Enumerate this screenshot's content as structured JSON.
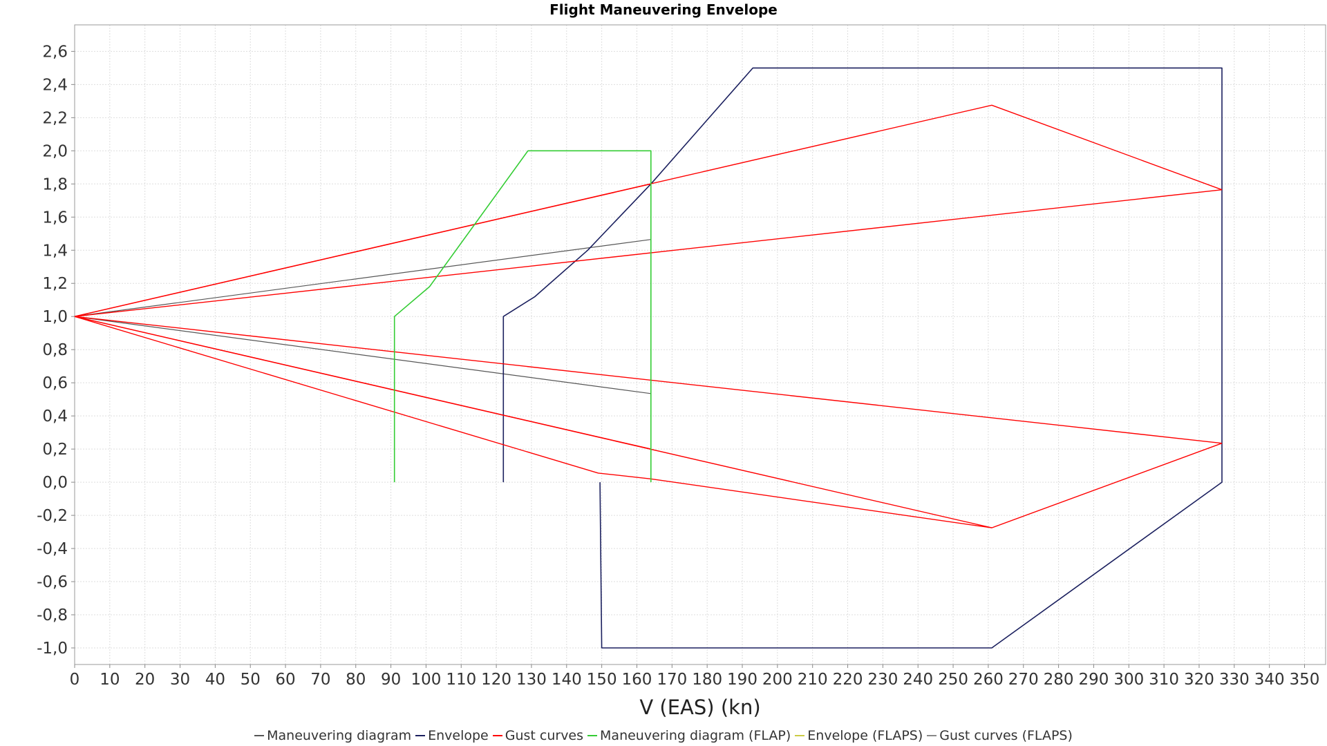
{
  "chart_data": {
    "type": "line",
    "title": "Flight Maneuvering Envelope",
    "xlabel": "V (EAS) (kn)",
    "ylabel": "",
    "xlim": [
      0,
      356
    ],
    "ylim": [
      -1.1,
      2.76
    ],
    "grid": true,
    "legend_position": "bottom",
    "x_ticks": [
      0,
      10,
      20,
      30,
      40,
      50,
      60,
      70,
      80,
      90,
      100,
      110,
      120,
      130,
      140,
      150,
      160,
      170,
      180,
      190,
      200,
      210,
      220,
      230,
      240,
      250,
      260,
      270,
      280,
      290,
      300,
      310,
      320,
      330,
      340,
      350
    ],
    "y_ticks": [
      -1.0,
      -0.8,
      -0.6,
      -0.4,
      -0.2,
      0.0,
      0.2,
      0.4,
      0.6,
      0.8,
      1.0,
      1.2,
      1.4,
      1.6,
      1.8,
      2.0,
      2.2,
      2.4,
      2.6
    ],
    "y_tick_labels": [
      "-1,0",
      "-0,8",
      "-0,6",
      "-0,4",
      "-0,2",
      "0,0",
      "0,2",
      "0,4",
      "0,6",
      "0,8",
      "1,0",
      "1,2",
      "1,4",
      "1,6",
      "1,8",
      "2,0",
      "2,2",
      "2,4",
      "2,6"
    ],
    "series": [
      {
        "name": "Maneuvering diagram",
        "color": "#555555",
        "width": 1.2,
        "segments": [
          [
            [
              0,
              1.0
            ],
            [
              164,
              1.465
            ]
          ],
          [
            [
              0,
              1.0
            ],
            [
              164,
              0.535
            ]
          ]
        ]
      },
      {
        "name": "Envelope",
        "color": "#1a1f5e",
        "width": 1.6,
        "segments": [
          [
            [
              122,
              0.0
            ],
            [
              122,
              1.0
            ],
            [
              131,
              1.12
            ],
            [
              146,
              1.4
            ],
            [
              164,
              1.8
            ],
            [
              193,
              2.5
            ],
            [
              326.5,
              2.5
            ],
            [
              326.5,
              0.0
            ],
            [
              261,
              -1.0
            ],
            [
              150,
              -1.0
            ],
            [
              149.5,
              0.0
            ]
          ]
        ]
      },
      {
        "name": "Gust curves",
        "color": "#ff0000",
        "width": 1.4,
        "segments": [
          [
            [
              0,
              1.0
            ],
            [
              164,
              1.8
            ]
          ],
          [
            [
              0,
              1.0
            ],
            [
              164,
              0.2
            ]
          ],
          [
            [
              0,
              1.0
            ],
            [
              261,
              2.275
            ],
            [
              326.5,
              1.765
            ]
          ],
          [
            [
              0,
              1.0
            ],
            [
              261,
              -0.275
            ],
            [
              326.5,
              0.235
            ]
          ],
          [
            [
              0,
              1.0
            ],
            [
              326.5,
              1.765
            ]
          ],
          [
            [
              0,
              1.0
            ],
            [
              326.5,
              0.235
            ]
          ],
          [
            [
              0,
              1.0
            ],
            [
              149,
              0.055
            ],
            [
              164,
              0.02
            ],
            [
              261,
              -0.275
            ]
          ]
        ]
      },
      {
        "name": "Maneuvering diagram (FLAP)",
        "color": "#33cc33",
        "width": 1.6,
        "segments": [
          [
            [
              91,
              0.0
            ],
            [
              91,
              1.0
            ],
            [
              101,
              1.18
            ],
            [
              129,
              2.0
            ],
            [
              164,
              2.0
            ],
            [
              164,
              0.0
            ]
          ]
        ]
      },
      {
        "name": "Envelope (FLAPS)",
        "color": "#cccc44",
        "width": 1.2,
        "segments": []
      },
      {
        "name": "Gust curves (FLAPS)",
        "color": "#888888",
        "width": 1.2,
        "segments": []
      }
    ]
  }
}
